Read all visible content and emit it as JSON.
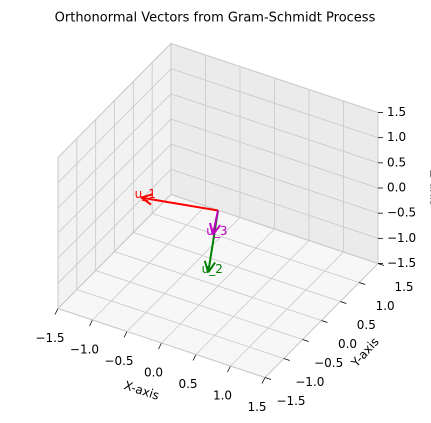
{
  "chart_data": {
    "type": "quiver3d",
    "title": "Orthonormal Vectors from Gram-Schmidt Process",
    "xlabel": "X-axis",
    "ylabel": "Y-axis",
    "zlabel": "Z-axis",
    "xlim": [
      -1.5,
      1.5
    ],
    "ylim": [
      -1.5,
      1.5
    ],
    "zlim": [
      -1.5,
      1.5
    ],
    "xticks": [
      {
        "value": -1.5,
        "label": "−1.5"
      },
      {
        "value": -1.0,
        "label": "−1.0"
      },
      {
        "value": -0.5,
        "label": "−0.5"
      },
      {
        "value": 0.0,
        "label": "0.0"
      },
      0.5,
      {
        "value": 1.0,
        "label": "1.0"
      },
      1.5
    ],
    "yticks": [
      {
        "value": -1.5,
        "label": "−1.5"
      },
      {
        "value": -1.0,
        "label": "−1.0"
      },
      {
        "value": -0.5,
        "label": "−0.5"
      },
      {
        "value": 0.0,
        "label": "0.0"
      },
      0.5,
      {
        "value": 1.0,
        "label": "1.0"
      },
      1.5
    ],
    "zticks": [
      {
        "value": -1.5,
        "label": "−1.5"
      },
      {
        "value": -1.0,
        "label": "−1.0"
      },
      {
        "value": -0.5,
        "label": "−0.5"
      },
      {
        "value": 0.0,
        "label": "0.0"
      },
      0.5,
      {
        "value": 1.0,
        "label": "1.0"
      },
      1.5
    ],
    "grid": true,
    "series": [
      {
        "name": "u_1",
        "color": "#ff0000",
        "values": [
          -0.91,
          -0.37,
          0.12
        ]
      },
      {
        "name": "u_2",
        "color": "#008000",
        "values": [
          0.05,
          -0.35,
          -0.94
        ]
      },
      {
        "name": "u_3",
        "color": "#bf00bf",
        "values": [
          0.39,
          -0.85,
          0.34
        ]
      }
    ]
  }
}
